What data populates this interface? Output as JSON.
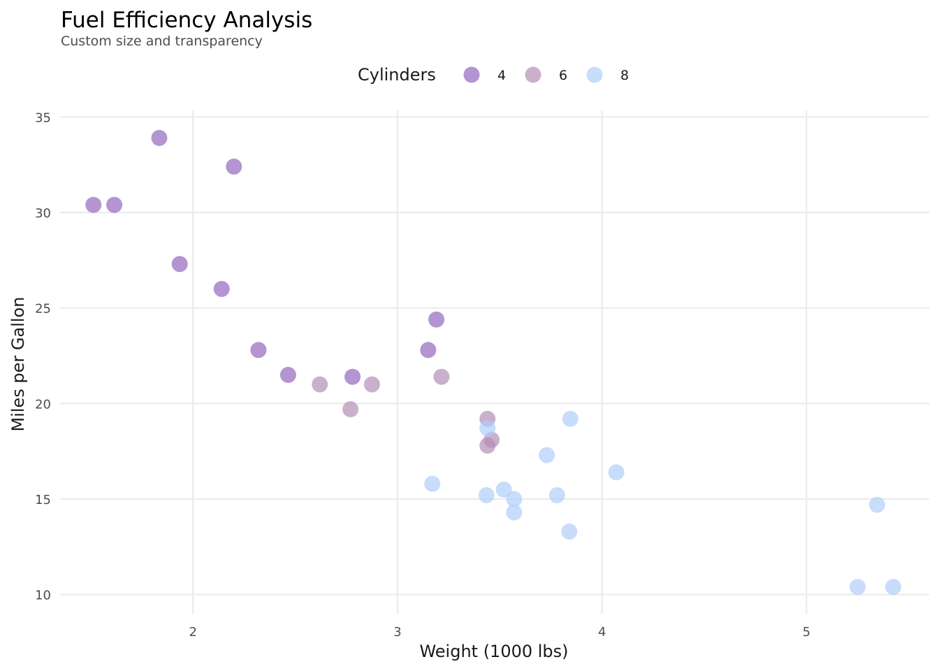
{
  "chart_data": {
    "type": "scatter",
    "title": "Fuel Efficiency Analysis",
    "subtitle": "Custom size and transparency",
    "xlabel": "Weight (1000 lbs)",
    "ylabel": "Miles per Gallon",
    "xlim": [
      1.35,
      5.6
    ],
    "ylim": [
      9.0,
      36.0
    ],
    "x_ticks": [
      2,
      3,
      4,
      5
    ],
    "y_ticks": [
      10,
      15,
      20,
      25,
      30,
      35
    ],
    "grid": true,
    "legend": {
      "title": "Cylinders",
      "position": "top"
    },
    "series": [
      {
        "name": "4",
        "color": "#9467bd",
        "points": [
          {
            "x": 1.835,
            "y": 33.9
          },
          {
            "x": 2.2,
            "y": 32.4
          },
          {
            "x": 1.513,
            "y": 30.4
          },
          {
            "x": 1.615,
            "y": 30.4
          },
          {
            "x": 1.935,
            "y": 27.3
          },
          {
            "x": 2.14,
            "y": 26.0
          },
          {
            "x": 3.19,
            "y": 24.4
          },
          {
            "x": 2.32,
            "y": 22.8
          },
          {
            "x": 3.15,
            "y": 22.8
          },
          {
            "x": 2.465,
            "y": 21.5
          },
          {
            "x": 2.78,
            "y": 21.4
          }
        ]
      },
      {
        "name": "6",
        "color": "#b38eb5",
        "points": [
          {
            "x": 2.62,
            "y": 21.0
          },
          {
            "x": 2.875,
            "y": 21.0
          },
          {
            "x": 3.215,
            "y": 21.4
          },
          {
            "x": 2.77,
            "y": 19.7
          },
          {
            "x": 3.44,
            "y": 19.2
          },
          {
            "x": 3.46,
            "y": 18.1
          },
          {
            "x": 3.44,
            "y": 17.8
          }
        ]
      },
      {
        "name": "8",
        "color": "#b0cdfa",
        "points": [
          {
            "x": 3.44,
            "y": 18.7
          },
          {
            "x": 3.845,
            "y": 19.2
          },
          {
            "x": 3.73,
            "y": 17.3
          },
          {
            "x": 4.07,
            "y": 16.4
          },
          {
            "x": 3.17,
            "y": 15.8
          },
          {
            "x": 3.52,
            "y": 15.5
          },
          {
            "x": 3.435,
            "y": 15.2
          },
          {
            "x": 3.78,
            "y": 15.2
          },
          {
            "x": 3.57,
            "y": 15.0
          },
          {
            "x": 3.57,
            "y": 14.3
          },
          {
            "x": 3.84,
            "y": 13.3
          },
          {
            "x": 5.345,
            "y": 14.7
          },
          {
            "x": 5.25,
            "y": 10.4
          },
          {
            "x": 5.424,
            "y": 10.4
          }
        ]
      }
    ]
  }
}
